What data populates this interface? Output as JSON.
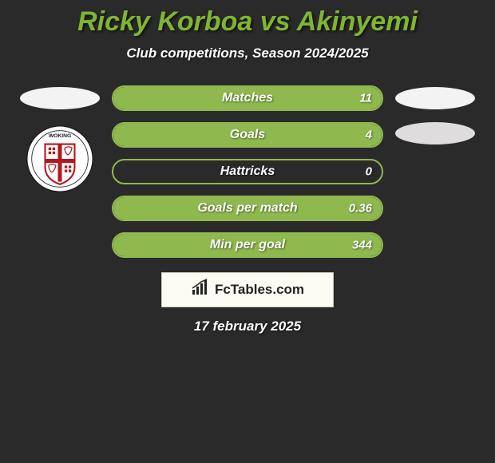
{
  "title": "Ricky Korboa vs Akinyemi",
  "subtitle": "Club competitions, Season 2024/2025",
  "date": "17 february 2025",
  "brand": "FcTables.com",
  "colors": {
    "accent": "#7fb532",
    "bar_border": "#8fb94e",
    "bar_fill": "#8fb94e",
    "bg": "#2a2a2a",
    "brand_bg": "#fcfcf4"
  },
  "crest": {
    "bg": "#ffffff",
    "shield_fill": "#ffffff",
    "shield_border": "#b4181e",
    "cross": "#b4181e",
    "text_top": "WOKING",
    "text_color": "#1a1a1a"
  },
  "bars": [
    {
      "label": "Matches",
      "value": "11",
      "fill_pct": 100
    },
    {
      "label": "Goals",
      "value": "4",
      "fill_pct": 100
    },
    {
      "label": "Hattricks",
      "value": "0",
      "fill_pct": 0
    },
    {
      "label": "Goals per match",
      "value": "0.36",
      "fill_pct": 100
    },
    {
      "label": "Min per goal",
      "value": "344",
      "fill_pct": 100
    }
  ]
}
